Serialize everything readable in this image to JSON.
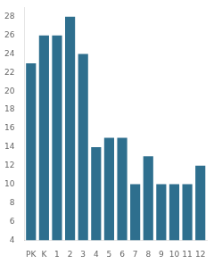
{
  "chart_data": {
    "type": "bar",
    "categories": [
      "PK",
      "K",
      "1",
      "2",
      "3",
      "4",
      "5",
      "6",
      "7",
      "8",
      "9",
      "10",
      "11",
      "12"
    ],
    "values": [
      23,
      26,
      26,
      28,
      24,
      14,
      15,
      15,
      10,
      13,
      10,
      10,
      10,
      12
    ],
    "color": "#2e6f8e",
    "ylim": [
      4,
      29
    ],
    "yticks": [
      4,
      6,
      8,
      10,
      12,
      14,
      16,
      18,
      20,
      22,
      24,
      26,
      28
    ],
    "grid": false
  }
}
